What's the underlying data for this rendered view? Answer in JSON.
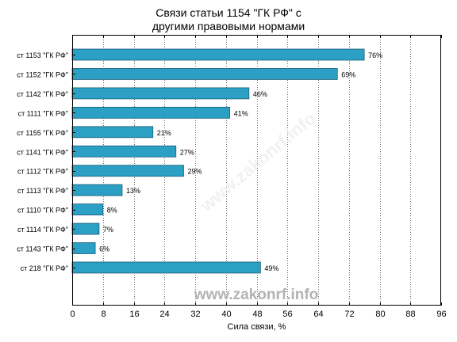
{
  "chart_data": {
    "type": "bar",
    "orientation": "horizontal",
    "title_line1": "Связи статьи 1154 \"ГК РФ\" с",
    "title_line2": "другими правовыми нормами",
    "xlabel": "Сила связи, %",
    "xlim": [
      0,
      96
    ],
    "xticks": [
      "0",
      "8",
      "16",
      "24",
      "32",
      "40",
      "48",
      "56",
      "64",
      "72",
      "80",
      "88",
      "96"
    ],
    "grid": true,
    "bar_color": "#2b9fc4",
    "categories": [
      "ст 1153 \"ГК РФ\"",
      "ст 1152 \"ГК РФ\"",
      "ст 1142 \"ГК РФ\"",
      "ст 1111 \"ГК РФ\"",
      "ст 1155 \"ГК РФ\"",
      "ст 1141 \"ГК РФ\"",
      "ст 1112 \"ГК РФ\"",
      "ст 1113 \"ГК РФ\"",
      "ст 1110 \"ГК РФ\"",
      "ст 1114 \"ГК РФ\"",
      "ст 1143 \"ГК РФ\"",
      "ст 218 \"ГК РФ\""
    ],
    "values": [
      76,
      69,
      46,
      41,
      21,
      27,
      29,
      13,
      8,
      7,
      6,
      49
    ],
    "value_labels": [
      "76%",
      "69%",
      "46%",
      "41%",
      "21%",
      "27%",
      "29%",
      "13%",
      "8%",
      "7%",
      "6%",
      "49%"
    ]
  },
  "watermark": {
    "text": "www.zakonrf.info",
    "color": "#b3b3b3"
  }
}
